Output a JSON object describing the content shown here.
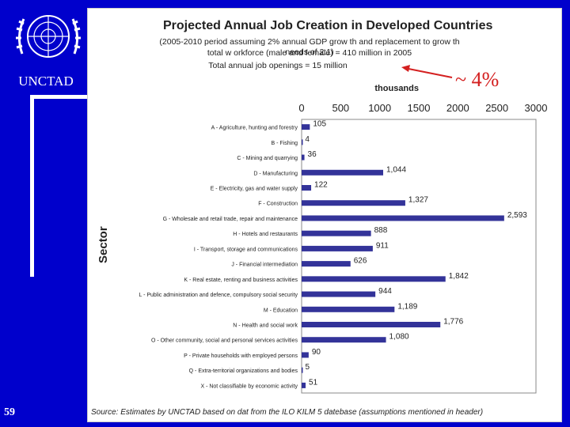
{
  "org": "UNCTAD",
  "slide_number": "59",
  "subtitle_lines": [
    "(2005-2010 period assuming 2% annual GDP grow th and replacement to grow th needs of 2:1)",
    "total w orkforce (male and female) = 410 million in 2005",
    "Total annual job openings = 15 million"
  ],
  "callout": "~ 4%",
  "source": "Source: Estimates by UNCTAD based on dat from the ILO KILM 5 datebase (assumptions mentioned in header)",
  "colors": {
    "background": "#0000cc",
    "bar": "#333399",
    "arrow": "#d42020"
  },
  "chart_data": {
    "type": "bar",
    "orientation": "horizontal",
    "title": "Projected Annual Job Creation in Developed Countries",
    "xlabel": "thousands",
    "ylabel": "Sector",
    "xlim": [
      0,
      3000
    ],
    "xticks": [
      "0",
      "500",
      "1000",
      "1500",
      "2000",
      "2500",
      "3000"
    ],
    "categories": [
      "A - Agriculture, hunting and forestry",
      "B - Fishing",
      "C - Mining and quarrying",
      "D - Manufacturing",
      "E - Electricity, gas and water supply",
      "F - Construction",
      "G - Wholesale and retail trade, repair and maintenance",
      "H - Hotels and restaurants",
      "I - Transport, storage and communications",
      "J - Financial intermediation",
      "K - Real estate, renting and business activities",
      "L - Public administration and defence, compulsory social security",
      "M - Education",
      "N - Health and social work",
      "O - Other community, social and personal services activities",
      "P - Private households with employed persons",
      "Q - Extra-territorial organizations and bodies",
      "X - Not classifiable by economic activity"
    ],
    "values": [
      105,
      4,
      36,
      1044,
      122,
      1327,
      2593,
      888,
      911,
      626,
      1842,
      944,
      1189,
      1776,
      1080,
      90,
      5,
      51
    ],
    "labels": [
      "105",
      "4",
      "36",
      "1,044",
      "122",
      "1,327",
      "2,593",
      "888",
      "911",
      "626",
      "1,842",
      "944",
      "1,189",
      "1,776",
      "1,080",
      "90",
      "5",
      "51"
    ]
  }
}
